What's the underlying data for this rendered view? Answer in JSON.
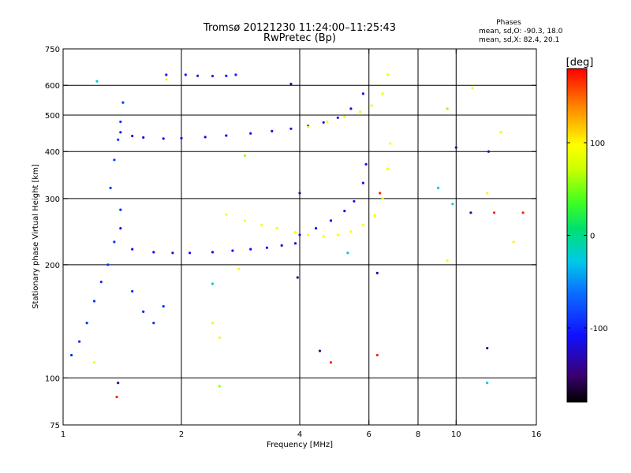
{
  "chart_data": {
    "type": "scatter",
    "title": "Tromsø 20121230 11:24:00–11:25:43",
    "subtitle": "RwPretec (Bp)",
    "info": {
      "title": "Phases",
      "line1": "mean, sd,O: -90.3, 18.0",
      "line2": "mean, sd,X:  82.4, 20.1"
    },
    "xlabel": "Frequency [MHz]",
    "ylabel": "Stationary phase Virtual Height [km]",
    "xscale": "log",
    "yscale": "log",
    "xlim": [
      1,
      16
    ],
    "ylim": [
      75,
      750
    ],
    "xticks": [
      1,
      2,
      4,
      6,
      8,
      10,
      16
    ],
    "xtick_labels": [
      "1",
      "2",
      "4",
      "6",
      "8",
      "10",
      "16"
    ],
    "xgrid": [
      2,
      4,
      6,
      8,
      10
    ],
    "yticks": [
      75,
      100,
      200,
      300,
      400,
      500,
      600,
      750
    ],
    "ytick_labels": [
      "75",
      "100",
      "200",
      "300",
      "400",
      "500",
      "600",
      "750"
    ],
    "ygrid": [
      100,
      200,
      300,
      400,
      500,
      600
    ],
    "grid": true,
    "colorbar": {
      "label": "[deg]",
      "range": [
        -180,
        180
      ],
      "ticks": [
        100,
        0,
        -100
      ],
      "tick_labels": [
        "100",
        "0",
        "-100"
      ]
    },
    "series": [
      {
        "phase": -110,
        "freq": [
          1.4,
          1.5,
          1.7,
          1.9,
          2.1,
          2.4,
          2.7,
          3.0,
          3.3,
          3.6,
          3.9
        ],
        "height": [
          250,
          220,
          216,
          215,
          215,
          216,
          218,
          220,
          222,
          225,
          228
        ]
      },
      {
        "phase": -115,
        "freq": [
          1.4,
          1.5,
          1.6,
          1.8,
          2.0,
          2.3,
          2.6,
          3.0,
          3.4,
          3.8,
          4.2,
          4.6,
          5.0,
          5.4,
          5.8
        ],
        "height": [
          450,
          440,
          436,
          433,
          434,
          437,
          441,
          447,
          453,
          460,
          468,
          478,
          492,
          520,
          570
        ]
      },
      {
        "phase": -112,
        "freq": [
          4.0,
          4.4,
          4.8,
          5.2,
          5.5,
          5.8,
          5.9
        ],
        "height": [
          240,
          250,
          262,
          278,
          295,
          330,
          370
        ]
      },
      {
        "phase": 95,
        "freq": [
          2.6,
          2.9,
          3.2,
          3.5,
          3.9,
          4.2,
          4.6,
          5.0,
          5.4,
          5.8,
          6.2,
          6.5,
          6.7,
          6.8
        ],
        "height": [
          272,
          262,
          255,
          250,
          244,
          240,
          238,
          240,
          245,
          255,
          270,
          300,
          360,
          420
        ]
      },
      {
        "phase": 90,
        "freq": [
          4.2,
          4.7,
          5.2,
          5.7,
          6.1,
          6.5,
          6.7
        ],
        "height": [
          465,
          480,
          495,
          510,
          530,
          570,
          640
        ]
      },
      {
        "phase": -95,
        "freq": [
          1.05,
          1.1,
          1.15,
          1.2,
          1.25,
          1.3,
          1.35,
          1.4,
          1.5,
          1.6,
          1.7,
          1.8
        ],
        "height": [
          115,
          125,
          140,
          160,
          180,
          200,
          230,
          280,
          170,
          150,
          140,
          155
        ]
      },
      {
        "phase": -90,
        "freq": [
          1.32,
          1.35,
          1.38,
          1.4,
          1.42
        ],
        "height": [
          320,
          380,
          430,
          480,
          540
        ]
      },
      {
        "phase": -100,
        "freq": [
          1.83,
          2.05,
          2.2,
          2.4,
          2.6,
          2.75
        ],
        "height": [
          640,
          640,
          636,
          635,
          636,
          640
        ]
      },
      {
        "phase": 100,
        "freq": [
          1.2,
          1.83,
          2.4,
          2.5,
          2.8,
          9.5,
          11.0,
          12.0,
          13.0,
          14.0
        ],
        "height": [
          110,
          622,
          140,
          128,
          195,
          205,
          590,
          310,
          450,
          230
        ]
      },
      {
        "phase": 60,
        "freq": [
          2.5,
          2.9,
          9.5
        ],
        "height": [
          95,
          390,
          520
        ]
      },
      {
        "phase": 170,
        "freq": [
          1.37,
          4.8,
          6.3,
          6.4,
          12.5,
          14.8
        ],
        "height": [
          89,
          110,
          115,
          310,
          275,
          275
        ]
      },
      {
        "phase": -140,
        "freq": [
          1.38,
          3.8,
          3.95,
          4.0,
          4.5,
          6.3,
          10.0,
          10.9,
          12.0,
          12.1
        ],
        "height": [
          97,
          605,
          185,
          310,
          118,
          190,
          410,
          275,
          120,
          400
        ]
      },
      {
        "phase": -20,
        "freq": [
          1.22,
          2.4,
          5.3,
          9.0,
          9.8,
          12.0
        ],
        "height": [
          615,
          178,
          215,
          320,
          290,
          97
        ]
      }
    ]
  }
}
